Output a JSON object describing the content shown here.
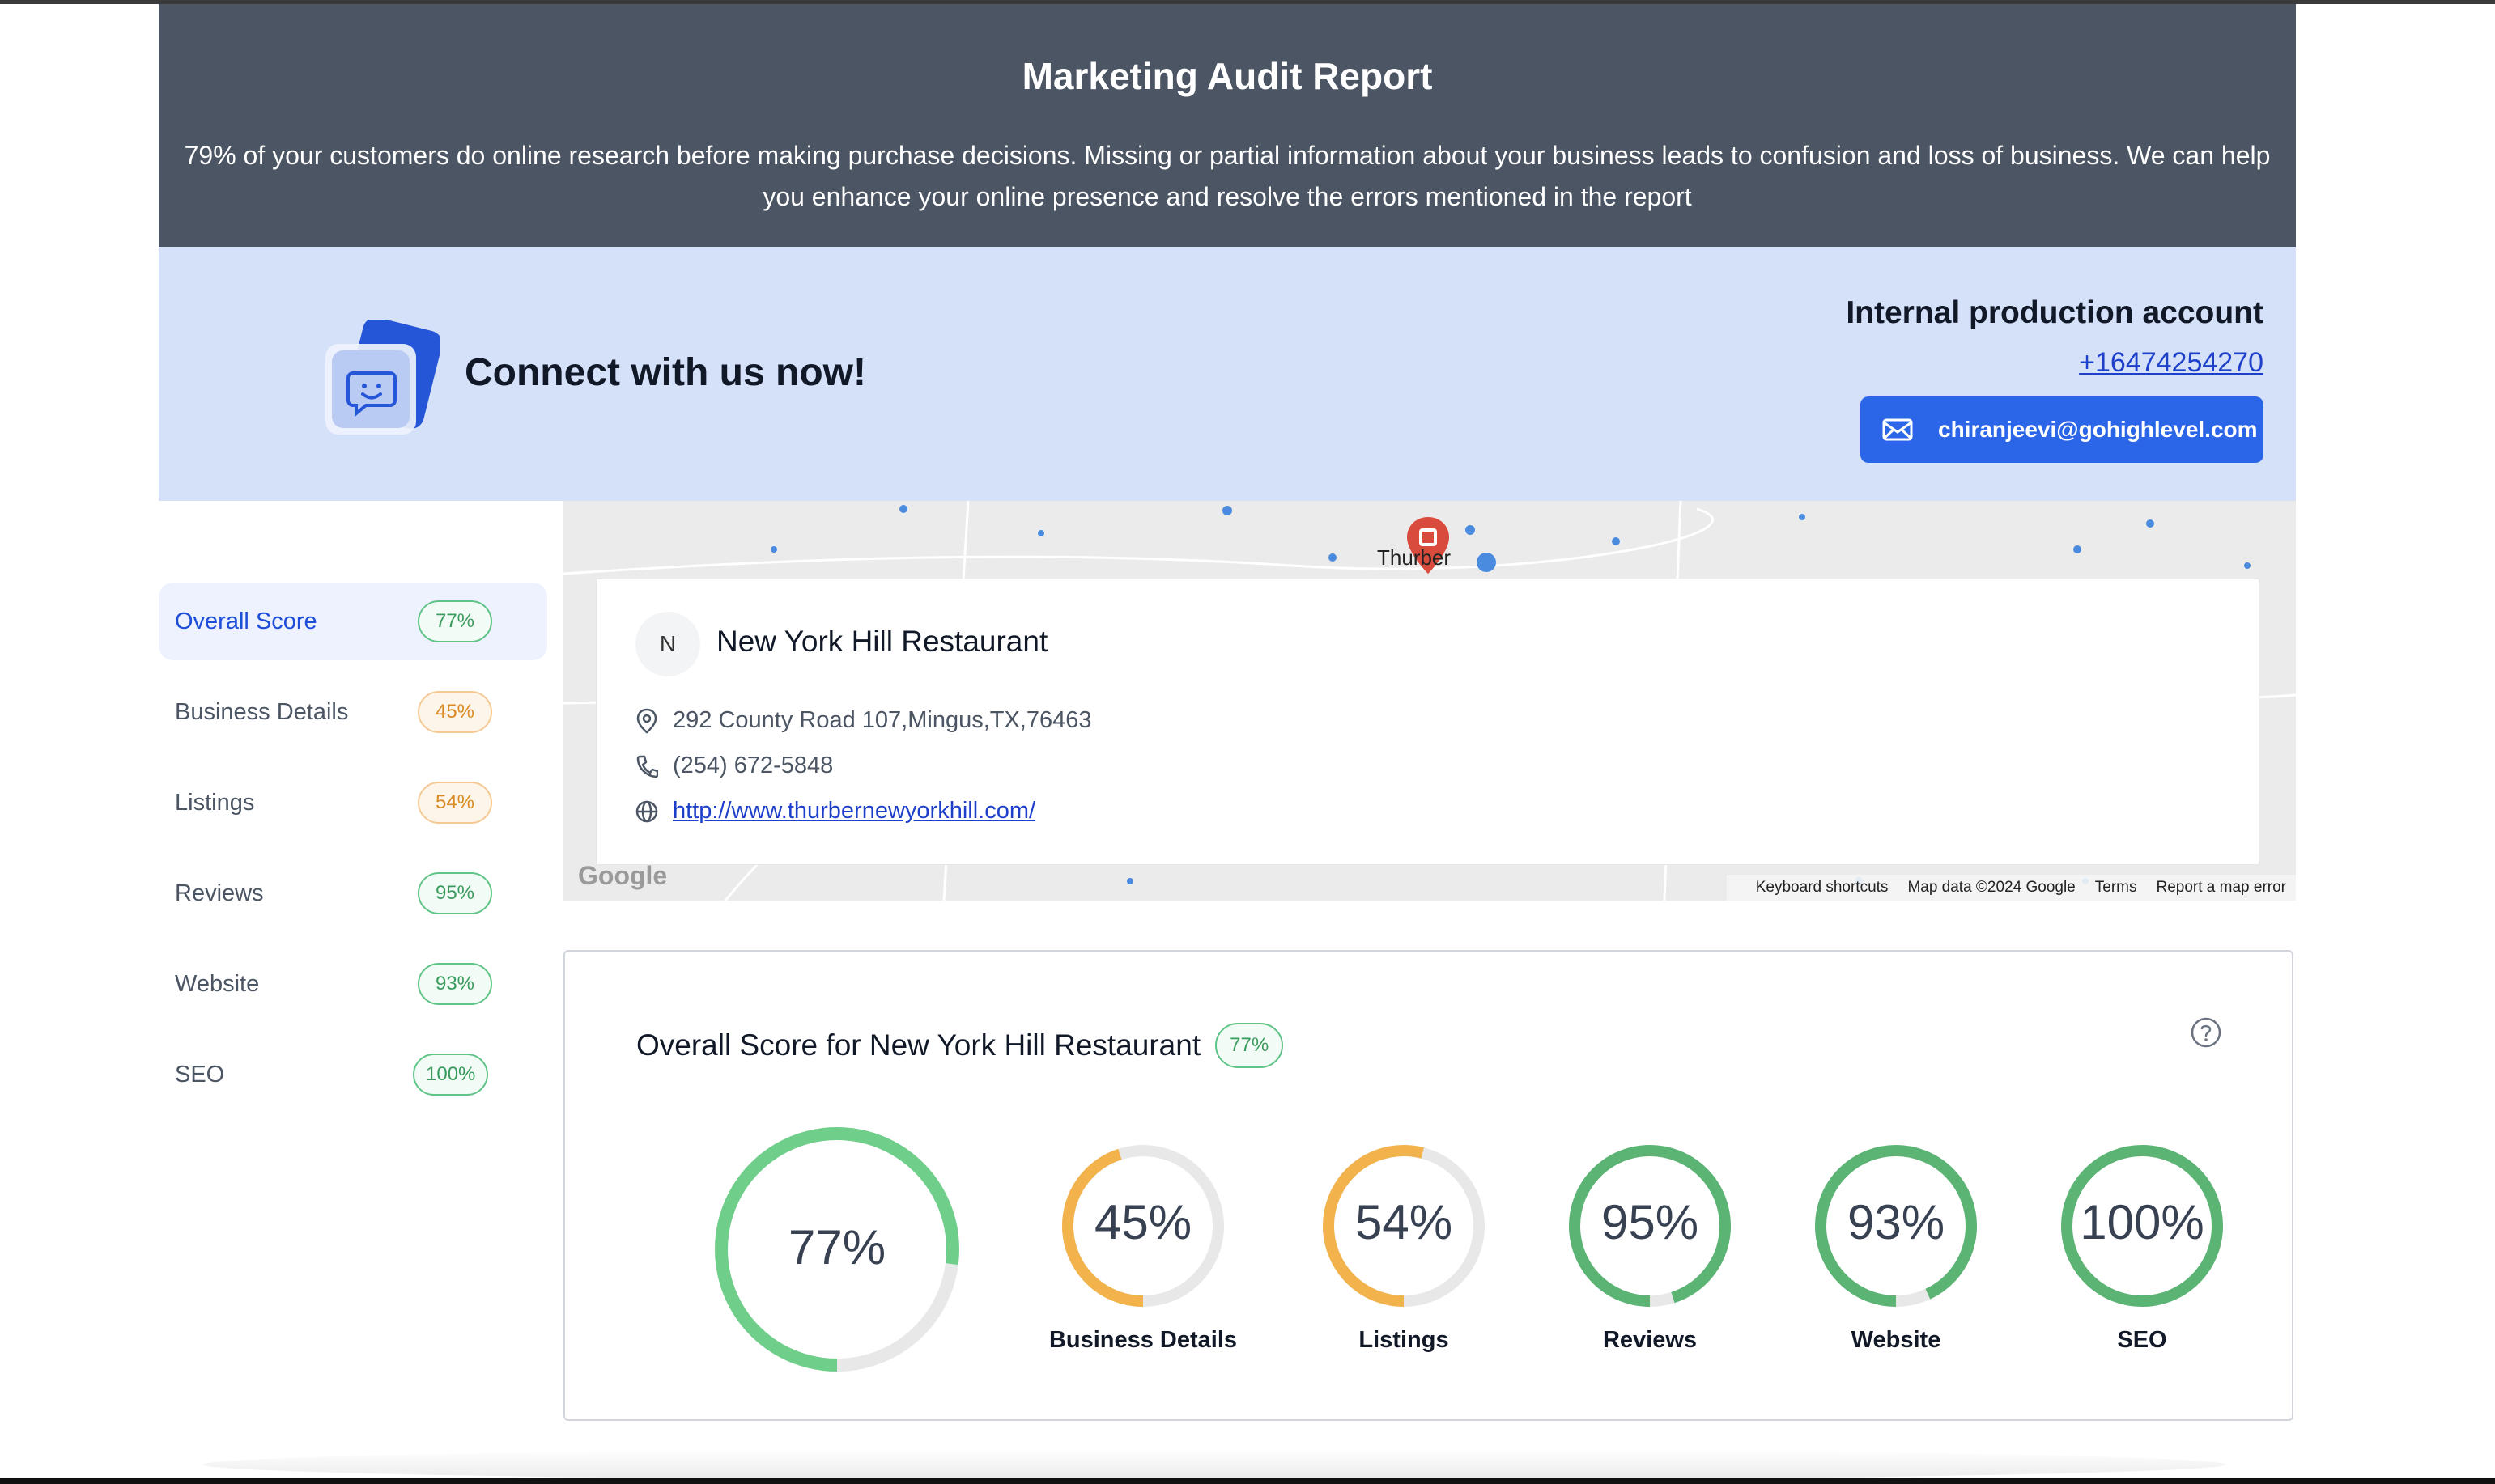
{
  "header": {
    "title": "Marketing Audit Report",
    "description": "79% of your customers do online research before making purchase decisions. Missing or partial information about your business leads to confusion and loss of business. We can help you enhance your online presence and resolve the errors mentioned in the report"
  },
  "connect": {
    "title": "Connect with us now!",
    "account_name": "Internal production account",
    "phone": "+16474254270",
    "email": "chiranjeevi@gohighlevel.com"
  },
  "sidebar": {
    "items": [
      {
        "label": "Overall Score",
        "score": "77%",
        "tone": "green"
      },
      {
        "label": "Business Details",
        "score": "45%",
        "tone": "orange"
      },
      {
        "label": "Listings",
        "score": "54%",
        "tone": "orange"
      },
      {
        "label": "Reviews",
        "score": "95%",
        "tone": "green"
      },
      {
        "label": "Website",
        "score": "93%",
        "tone": "green"
      },
      {
        "label": "SEO",
        "score": "100%",
        "tone": "green"
      }
    ]
  },
  "map": {
    "place_label": "Thurber",
    "logo": "Google",
    "footer": {
      "shortcuts": "Keyboard shortcuts",
      "data": "Map data ©2024 Google",
      "terms": "Terms",
      "report": "Report a map error"
    }
  },
  "business": {
    "avatar_letter": "N",
    "name": "New York Hill Restaurant",
    "address": "292 County Road 107,Mingus,TX,76463",
    "phone": "(254) 672-5848",
    "website": "http://www.thurbernewyorkhill.com/"
  },
  "overall": {
    "title": "Overall Score for New York Hill Restaurant",
    "badge": "77%",
    "main": {
      "value": 77,
      "display": "77%",
      "color": "#6fcf8a"
    },
    "gauges": [
      {
        "label": "Business Details",
        "value": 45,
        "display": "45%",
        "color": "#f2b24c"
      },
      {
        "label": "Listings",
        "value": 54,
        "display": "54%",
        "color": "#f2b24c"
      },
      {
        "label": "Reviews",
        "value": 95,
        "display": "95%",
        "color": "#5bb374"
      },
      {
        "label": "Website",
        "value": 93,
        "display": "93%",
        "color": "#5bb374"
      },
      {
        "label": "SEO",
        "value": 100,
        "display": "100%",
        "color": "#5bb374"
      }
    ]
  },
  "icons": {
    "chat": "chat-smile-icon",
    "email": "mail-icon",
    "location": "map-pin-icon",
    "phone": "phone-icon",
    "globe": "globe-icon",
    "help": "question-circle-icon"
  }
}
